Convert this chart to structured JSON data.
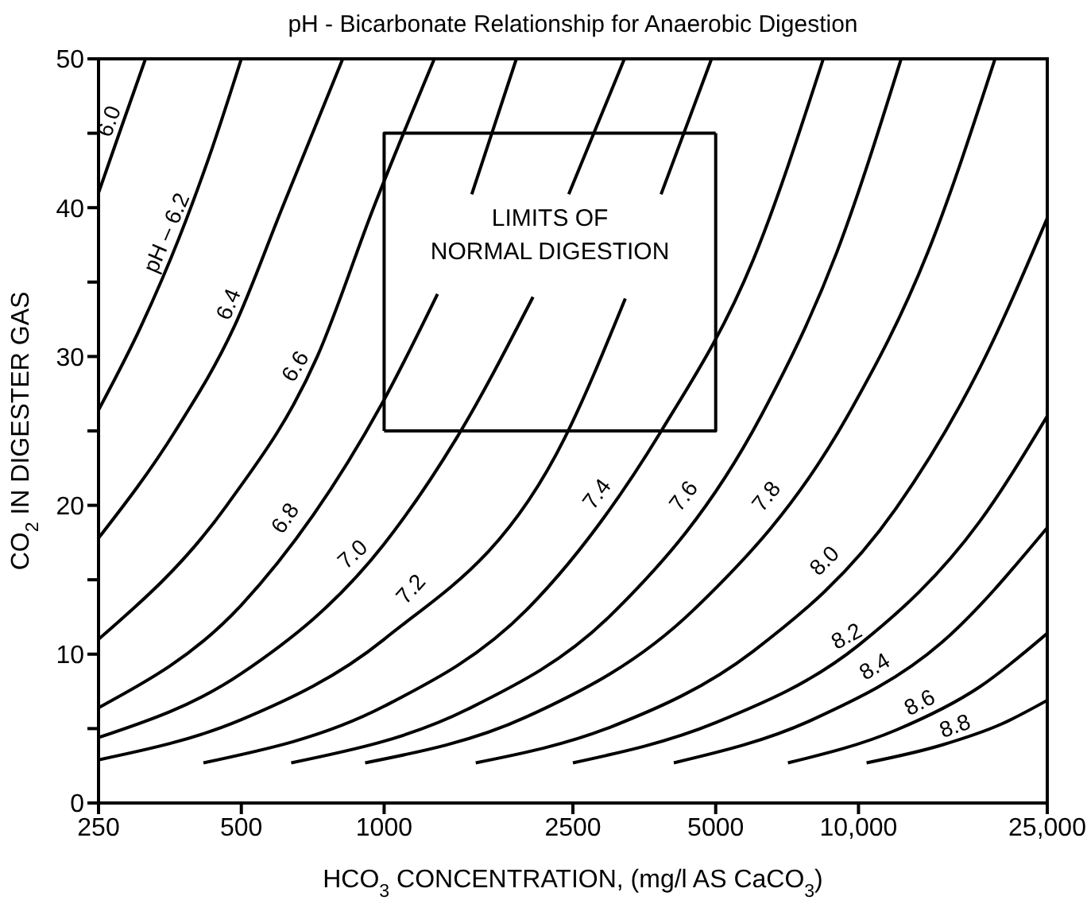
{
  "chart_data": {
    "type": "line",
    "title": "pH - Bicarbonate Relationship for Anaerobic Digestion",
    "xlabel": "HCO$_{3}$ CONCENTRATION, (mg/l AS CaCO$_{3}$)",
    "ylabel": "CO$_{2}$ IN DIGESTER GAS",
    "log": "x",
    "xlim": [
      250,
      25000
    ],
    "xticks": [
      250,
      500,
      1000,
      2500,
      5000,
      {
        "value": 10000,
        "label": "10,000"
      },
      {
        "value": 25000,
        "label": "25,000"
      }
    ],
    "ylim": [
      0,
      50
    ],
    "yticks": [
      0,
      {
        "value": 5,
        "label": null
      },
      10,
      {
        "value": 15,
        "label": null
      },
      20,
      {
        "value": 25,
        "label": null
      },
      30,
      {
        "value": 35,
        "label": null
      },
      40,
      {
        "value": 45,
        "label": null
      },
      50
    ],
    "annotations": [
      "LIMITS OF NORMAL DIGESTION"
    ],
    "series": [
      {
        "name": "6.0",
        "color": "#000000",
        "x": [
          250,
          280,
          314
        ],
        "values": [
          41,
          45.5,
          50
        ]
      },
      {
        "name": "pH – 6.2",
        "color": "#000000",
        "x": [
          250,
          307,
          370,
          434,
          500
        ],
        "values": [
          26.4,
          32,
          38,
          44,
          50
        ]
      },
      {
        "name": "6.4",
        "color": "#000000",
        "x": [
          250,
          363,
          483,
          610,
          818
        ],
        "values": [
          17.8,
          25,
          32,
          40,
          50
        ]
      },
      {
        "name": "6.6",
        "color": "#000000",
        "x": [
          250,
          466,
          723,
          950,
          1276
        ],
        "values": [
          11,
          20,
          30,
          40,
          50
        ]
      },
      {
        "name": "6.8",
        "color": "#000000",
        "x": [
          250,
          500,
          1000,
          1296,
          1400,
          1530,
          1900
        ],
        "values": [
          6.4,
          13.3,
          27.1,
          34.2,
          null,
          40.9,
          50
        ]
      },
      {
        "name": "7.0",
        "color": "#000000",
        "x": [
          250,
          500,
          1000,
          1420,
          2060,
          2250,
          2450,
          3210
        ],
        "values": [
          4.4,
          8.7,
          17.4,
          24.5,
          34,
          null,
          40.9,
          50
        ]
      },
      {
        "name": "7.2",
        "color": "#000000",
        "x": [
          250,
          500,
          1000,
          2400,
          3224,
          3500,
          3835,
          4900
        ],
        "values": [
          2.9,
          5.6,
          11,
          24.5,
          33.9,
          null,
          40.9,
          50
        ]
      },
      {
        "name": "7.4",
        "color": "#000000",
        "x": [
          416,
          1000,
          2000,
          3840,
          6000,
          8430
        ],
        "values": [
          2.7,
          6.5,
          13,
          25,
          36.5,
          50
        ]
      },
      {
        "name": "7.6",
        "color": "#000000",
        "x": [
          637,
          1500,
          3000,
          6230,
          9000,
          12300
        ],
        "values": [
          2.7,
          6.3,
          12.6,
          26,
          37,
          50
        ]
      },
      {
        "name": "7.8",
        "color": "#000000",
        "x": [
          912,
          2000,
          4500,
          9480,
          14000,
          19400
        ],
        "values": [
          2.7,
          5.8,
          13,
          26,
          37,
          50
        ]
      },
      {
        "name": "8.0",
        "color": "#000000",
        "x": [
          1560,
          3000,
          6000,
          12000,
          18000,
          25000
        ],
        "values": [
          2.7,
          5.1,
          10.2,
          19.8,
          29.2,
          39.3
        ]
      },
      {
        "name": "8.2",
        "color": "#000000",
        "x": [
          2500,
          5000,
          10000,
          18000,
          25000
        ],
        "values": [
          2.7,
          5.4,
          10.6,
          18.9,
          26
        ]
      },
      {
        "name": "8.4",
        "color": "#000000",
        "x": [
          4080,
          8000,
          15000,
          25000
        ],
        "values": [
          2.7,
          5.6,
          10.8,
          18.5
        ]
      },
      {
        "name": "8.6",
        "color": "#000000",
        "x": [
          7100,
          12000,
          18000,
          25000
        ],
        "values": [
          2.7,
          4.9,
          7.8,
          11.4
        ]
      },
      {
        "name": "8.8",
        "color": "#000000",
        "x": [
          10400,
          15000,
          20000,
          25000
        ],
        "values": [
          2.7,
          3.9,
          5.3,
          6.9
        ]
      },
      {
        "color": "#000000",
        "x": [
          1000,
          5000,
          5000
        ],
        "values": [
          25,
          25,
          45
        ]
      },
      {
        "color": "#000000",
        "x": [
          1000,
          1000,
          5000
        ],
        "values": [
          25,
          45,
          45
        ]
      }
    ]
  }
}
